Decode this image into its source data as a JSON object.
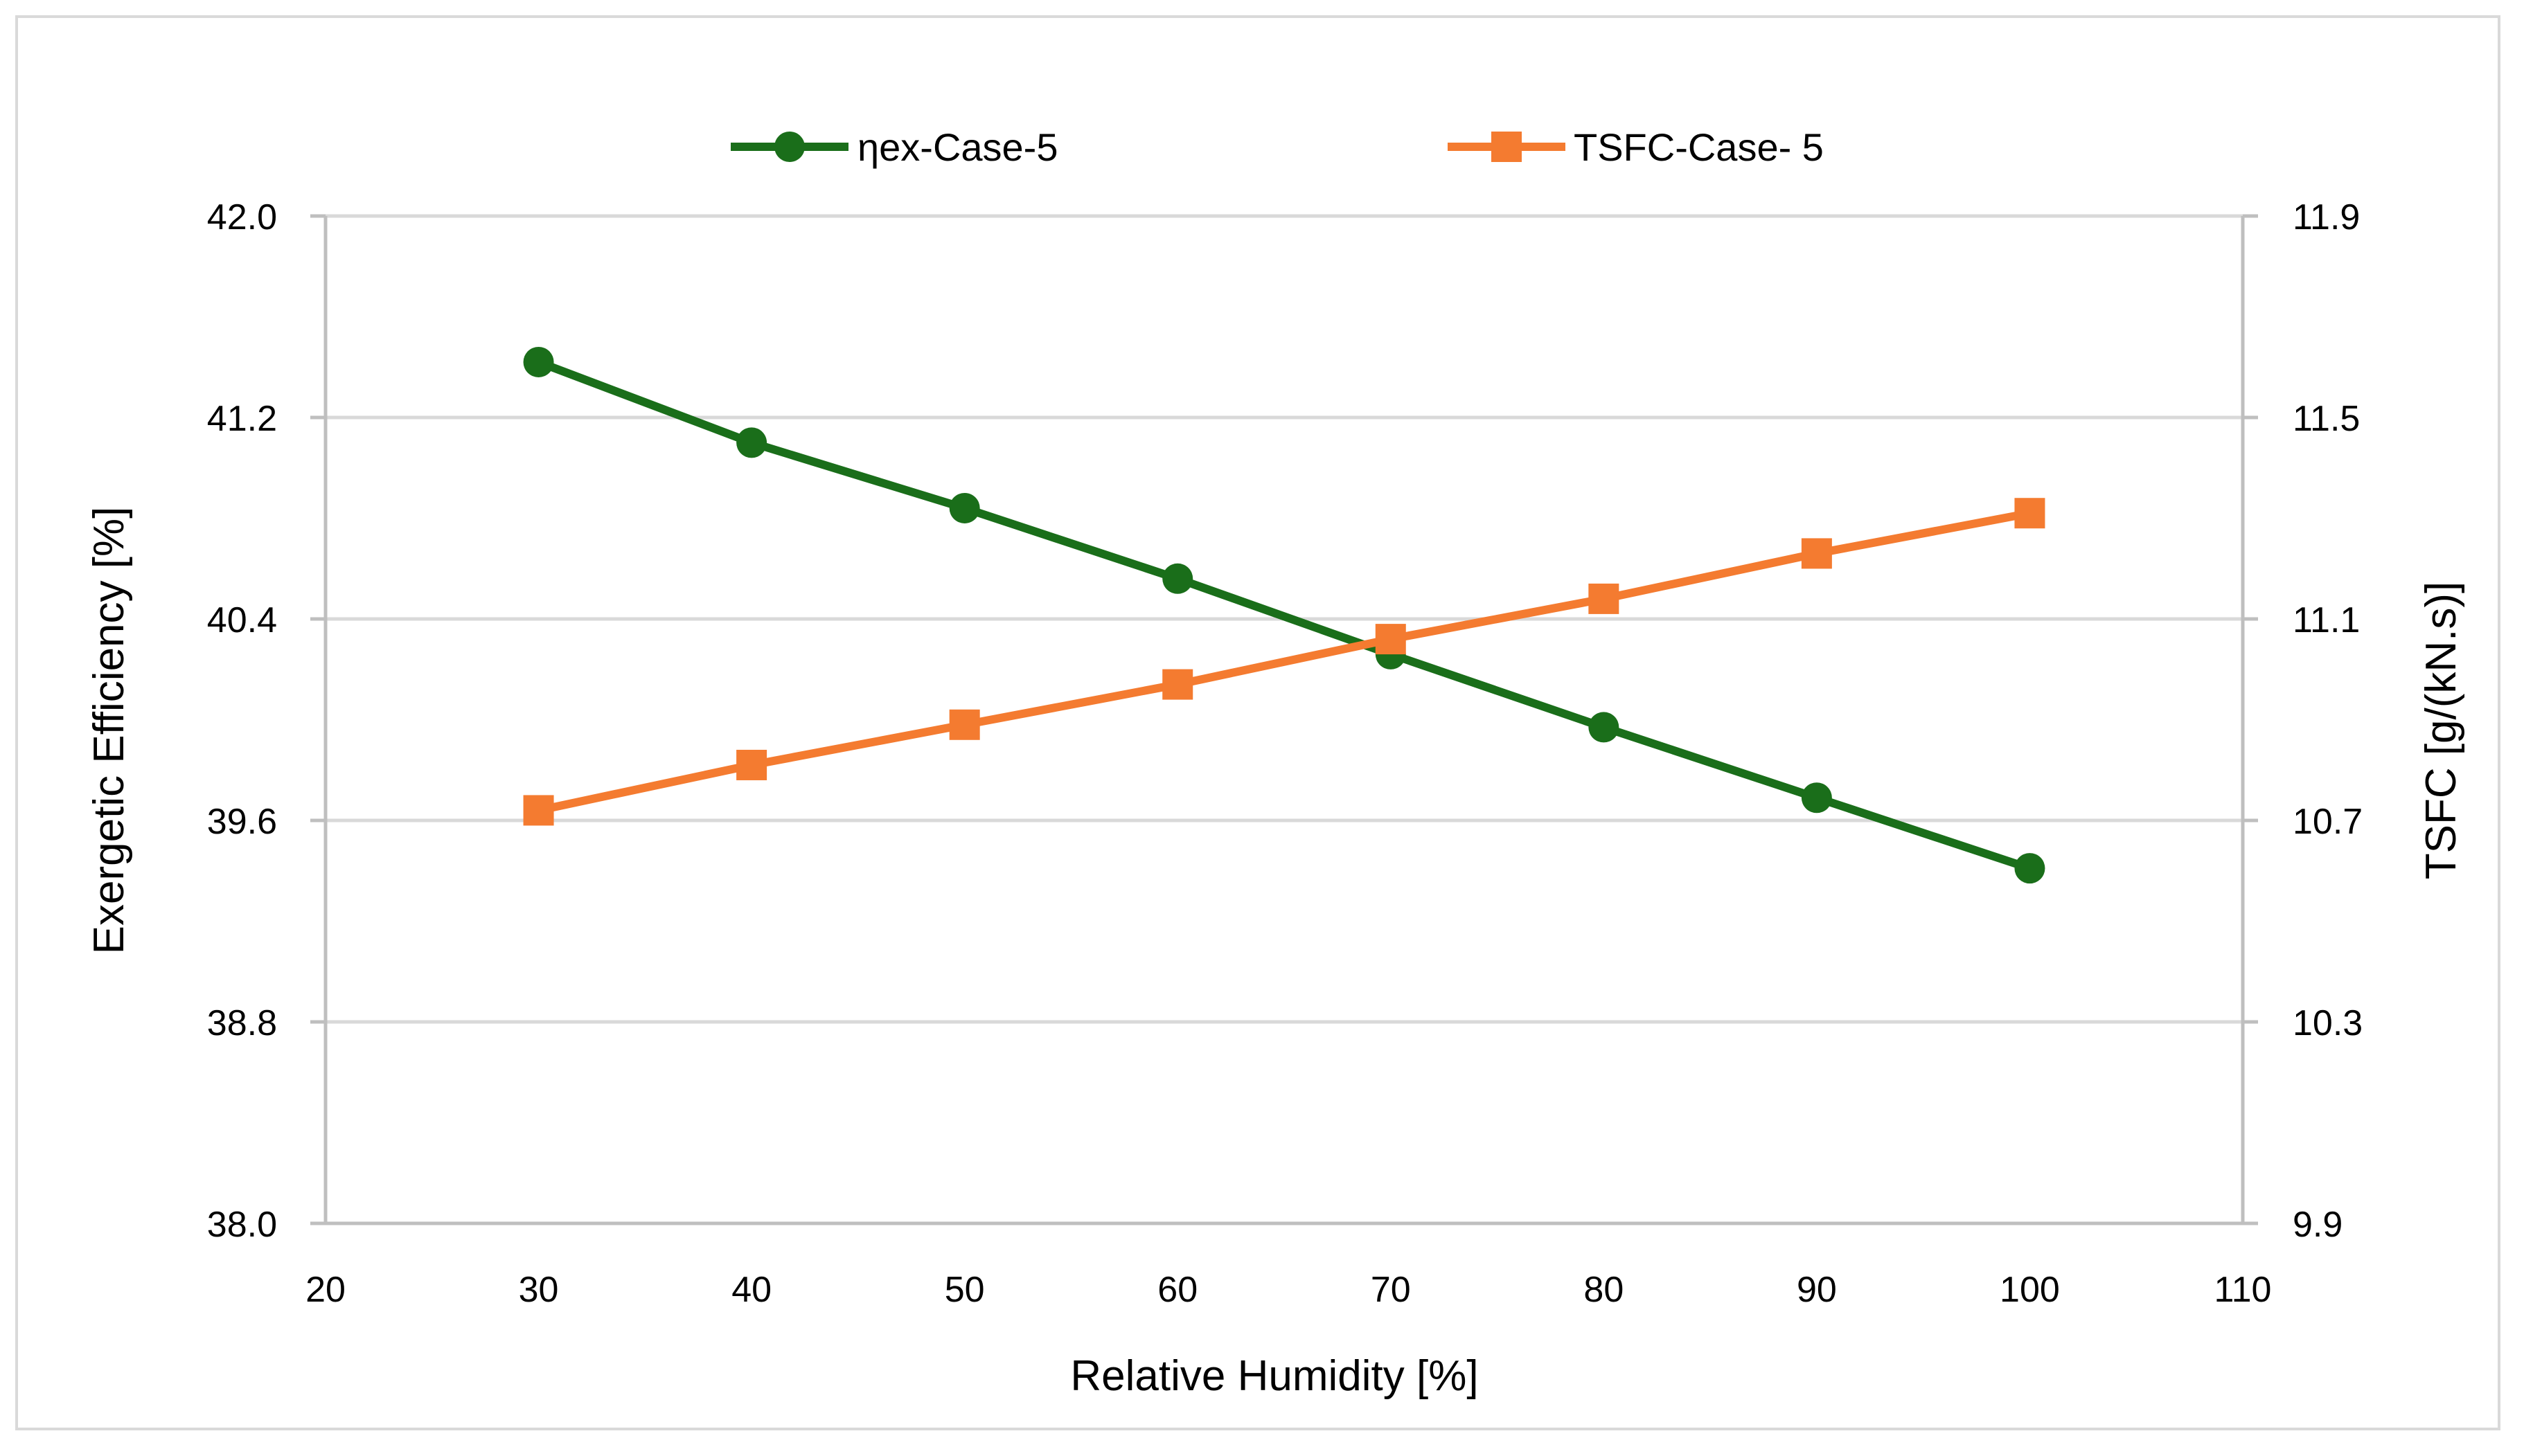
{
  "chart_data": {
    "type": "line",
    "xlabel": "Relative Humidity  [%]",
    "ylabel": "Exergetic Efficiency  [%]",
    "y2label": "TSFC [g/(kN.s)]",
    "xlim": [
      20,
      110
    ],
    "xticks": [
      "20",
      "30",
      "40",
      "50",
      "60",
      "70",
      "80",
      "90",
      "100",
      "110"
    ],
    "ylim": [
      38.0,
      42.0
    ],
    "yticks": [
      "42.0",
      "41.2",
      "40.4",
      "39.6",
      "38.8",
      "38.0"
    ],
    "y2lim": [
      9.9,
      11.9
    ],
    "y2ticks": [
      "11.9",
      "11.5",
      "11.1",
      "10.7",
      "10.3",
      "9.9"
    ],
    "grid": true,
    "legend_position": "top",
    "x": [
      30,
      40,
      50,
      60,
      70,
      80,
      90,
      100
    ],
    "series": [
      {
        "name": "ηex-Case-5",
        "axis": "left",
        "marker": "circle",
        "color": "#1a6e1a",
        "values": [
          41.42,
          41.1,
          40.84,
          40.56,
          40.26,
          39.97,
          39.69,
          39.41
        ]
      },
      {
        "name": "TSFC-Case- 5",
        "axis": "right",
        "marker": "square",
        "color": "#f47b30",
        "values": [
          10.72,
          10.81,
          10.89,
          10.97,
          11.06,
          11.14,
          11.23,
          11.31
        ]
      }
    ]
  }
}
